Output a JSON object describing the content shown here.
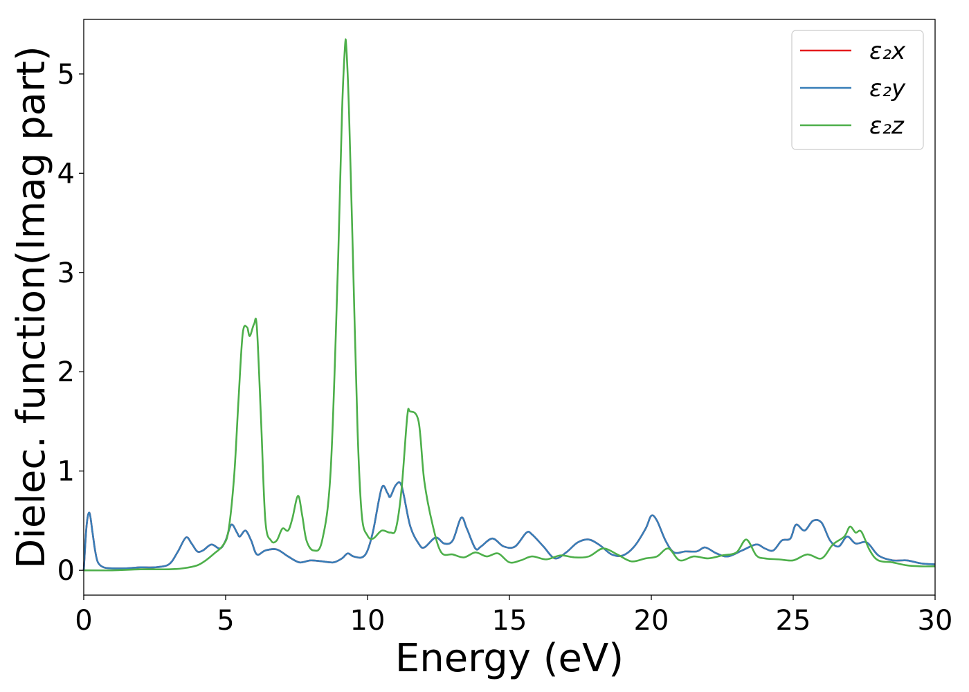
{
  "chart_data": {
    "type": "line",
    "title": "",
    "xlabel": "Energy (eV)",
    "ylabel": "Dielec. function(Imag part)",
    "xlim": [
      0,
      30
    ],
    "ylim": [
      -0.25,
      5.55
    ],
    "xticks": [
      0,
      5,
      10,
      15,
      20,
      25,
      30
    ],
    "yticks": [
      0,
      1,
      2,
      3,
      4,
      5
    ],
    "grid": false,
    "legend_position": "top-right",
    "series": [
      {
        "name": "ε₂x",
        "color": "#e41a1c",
        "x": [
          0,
          0.1,
          0.2,
          0.3,
          0.4,
          0.5,
          0.7,
          1.0,
          1.5,
          2.0,
          2.5,
          3.0,
          3.3,
          3.6,
          3.8,
          4.0,
          4.2,
          4.5,
          4.8,
          5.0,
          5.2,
          5.4,
          5.5,
          5.7,
          5.9,
          6.1,
          6.4,
          6.8,
          7.2,
          7.6,
          8.0,
          8.4,
          8.8,
          9.1,
          9.3,
          9.5,
          9.8,
          10.0,
          10.2,
          10.5,
          10.7,
          10.8,
          11.0,
          11.2,
          11.5,
          11.8,
          12.0,
          12.4,
          12.7,
          13.0,
          13.3,
          13.5,
          13.8,
          14.0,
          14.4,
          14.8,
          15.2,
          15.6,
          15.8,
          16.2,
          16.6,
          17.0,
          17.4,
          17.8,
          18.2,
          18.6,
          19.0,
          19.4,
          19.8,
          20.0,
          20.2,
          20.5,
          20.8,
          21.2,
          21.6,
          21.9,
          22.3,
          22.7,
          23.2,
          23.7,
          24.0,
          24.3,
          24.6,
          24.9,
          25.1,
          25.4,
          25.7,
          26.0,
          26.3,
          26.6,
          26.9,
          27.2,
          27.6,
          28.0,
          28.5,
          29.0,
          29.5,
          30.0
        ],
        "y": [
          0.0,
          0.45,
          0.58,
          0.4,
          0.2,
          0.08,
          0.03,
          0.02,
          0.02,
          0.03,
          0.03,
          0.06,
          0.18,
          0.33,
          0.27,
          0.19,
          0.2,
          0.26,
          0.22,
          0.3,
          0.46,
          0.38,
          0.34,
          0.4,
          0.3,
          0.16,
          0.2,
          0.21,
          0.14,
          0.08,
          0.1,
          0.09,
          0.08,
          0.12,
          0.17,
          0.14,
          0.13,
          0.2,
          0.4,
          0.83,
          0.78,
          0.74,
          0.86,
          0.85,
          0.45,
          0.27,
          0.23,
          0.33,
          0.27,
          0.3,
          0.53,
          0.42,
          0.22,
          0.24,
          0.32,
          0.24,
          0.24,
          0.38,
          0.36,
          0.24,
          0.12,
          0.18,
          0.28,
          0.31,
          0.25,
          0.16,
          0.15,
          0.24,
          0.42,
          0.55,
          0.5,
          0.3,
          0.18,
          0.19,
          0.19,
          0.23,
          0.17,
          0.14,
          0.2,
          0.26,
          0.22,
          0.2,
          0.3,
          0.32,
          0.46,
          0.4,
          0.5,
          0.48,
          0.3,
          0.24,
          0.34,
          0.27,
          0.28,
          0.15,
          0.1,
          0.1,
          0.07,
          0.06
        ]
      },
      {
        "name": "ε₂y",
        "color": "#377eb8",
        "x": [
          0,
          0.1,
          0.2,
          0.3,
          0.4,
          0.5,
          0.7,
          1.0,
          1.5,
          2.0,
          2.5,
          3.0,
          3.3,
          3.6,
          3.8,
          4.0,
          4.2,
          4.5,
          4.8,
          5.0,
          5.2,
          5.4,
          5.5,
          5.7,
          5.9,
          6.1,
          6.4,
          6.8,
          7.2,
          7.6,
          8.0,
          8.4,
          8.8,
          9.1,
          9.3,
          9.5,
          9.8,
          10.0,
          10.2,
          10.5,
          10.7,
          10.8,
          11.0,
          11.2,
          11.5,
          11.8,
          12.0,
          12.4,
          12.7,
          13.0,
          13.3,
          13.5,
          13.8,
          14.0,
          14.4,
          14.8,
          15.2,
          15.6,
          15.8,
          16.2,
          16.6,
          17.0,
          17.4,
          17.8,
          18.2,
          18.6,
          19.0,
          19.4,
          19.8,
          20.0,
          20.2,
          20.5,
          20.8,
          21.2,
          21.6,
          21.9,
          22.3,
          22.7,
          23.2,
          23.7,
          24.0,
          24.3,
          24.6,
          24.9,
          25.1,
          25.4,
          25.7,
          26.0,
          26.3,
          26.6,
          26.9,
          27.2,
          27.6,
          28.0,
          28.5,
          29.0,
          29.5,
          30.0
        ],
        "y": [
          0.0,
          0.45,
          0.58,
          0.4,
          0.2,
          0.08,
          0.03,
          0.02,
          0.02,
          0.03,
          0.03,
          0.06,
          0.18,
          0.33,
          0.27,
          0.19,
          0.2,
          0.26,
          0.22,
          0.3,
          0.46,
          0.38,
          0.34,
          0.4,
          0.3,
          0.16,
          0.2,
          0.21,
          0.14,
          0.08,
          0.1,
          0.09,
          0.08,
          0.12,
          0.17,
          0.14,
          0.13,
          0.2,
          0.4,
          0.83,
          0.78,
          0.74,
          0.86,
          0.85,
          0.45,
          0.27,
          0.23,
          0.33,
          0.27,
          0.3,
          0.53,
          0.42,
          0.22,
          0.24,
          0.32,
          0.24,
          0.24,
          0.38,
          0.36,
          0.24,
          0.12,
          0.18,
          0.28,
          0.31,
          0.25,
          0.16,
          0.15,
          0.24,
          0.42,
          0.55,
          0.5,
          0.3,
          0.18,
          0.19,
          0.19,
          0.23,
          0.17,
          0.14,
          0.2,
          0.26,
          0.22,
          0.2,
          0.3,
          0.32,
          0.46,
          0.4,
          0.5,
          0.48,
          0.3,
          0.24,
          0.34,
          0.27,
          0.28,
          0.15,
          0.1,
          0.1,
          0.07,
          0.06
        ]
      },
      {
        "name": "ε₂z",
        "color": "#4daf4a",
        "x": [
          0,
          1.0,
          2.0,
          3.0,
          3.5,
          4.0,
          4.3,
          4.6,
          4.9,
          5.1,
          5.3,
          5.45,
          5.6,
          5.75,
          5.85,
          6.0,
          6.1,
          6.25,
          6.4,
          6.6,
          6.8,
          7.0,
          7.2,
          7.35,
          7.55,
          7.7,
          7.85,
          8.1,
          8.4,
          8.7,
          8.95,
          9.1,
          9.2,
          9.25,
          9.35,
          9.5,
          9.65,
          9.8,
          10.0,
          10.2,
          10.5,
          10.8,
          11.0,
          11.2,
          11.4,
          11.5,
          11.8,
          12.0,
          12.3,
          12.6,
          13.0,
          13.4,
          13.8,
          14.2,
          14.6,
          15.0,
          15.4,
          15.8,
          16.3,
          16.8,
          17.3,
          17.8,
          18.3,
          18.8,
          19.3,
          19.8,
          20.2,
          20.6,
          21.0,
          21.5,
          22.0,
          22.5,
          23.0,
          23.35,
          23.7,
          24.0,
          24.5,
          25.0,
          25.5,
          26.0,
          26.4,
          26.8,
          27.0,
          27.2,
          27.4,
          27.7,
          28.0,
          28.5,
          29.0,
          29.5,
          30.0
        ],
        "y": [
          0.0,
          0.0,
          0.01,
          0.01,
          0.02,
          0.05,
          0.1,
          0.17,
          0.25,
          0.4,
          0.95,
          1.7,
          2.38,
          2.45,
          2.36,
          2.48,
          2.45,
          1.5,
          0.5,
          0.3,
          0.3,
          0.42,
          0.4,
          0.52,
          0.75,
          0.55,
          0.3,
          0.2,
          0.3,
          1.0,
          3.0,
          4.6,
          5.25,
          5.28,
          4.6,
          3.0,
          1.4,
          0.55,
          0.35,
          0.32,
          0.4,
          0.38,
          0.42,
          0.82,
          1.55,
          1.6,
          1.5,
          0.9,
          0.45,
          0.18,
          0.16,
          0.13,
          0.18,
          0.14,
          0.17,
          0.08,
          0.1,
          0.14,
          0.11,
          0.15,
          0.13,
          0.14,
          0.22,
          0.16,
          0.09,
          0.12,
          0.14,
          0.22,
          0.1,
          0.14,
          0.12,
          0.15,
          0.18,
          0.31,
          0.15,
          0.12,
          0.11,
          0.1,
          0.16,
          0.12,
          0.26,
          0.34,
          0.44,
          0.38,
          0.39,
          0.2,
          0.1,
          0.08,
          0.05,
          0.04,
          0.04
        ]
      }
    ]
  }
}
